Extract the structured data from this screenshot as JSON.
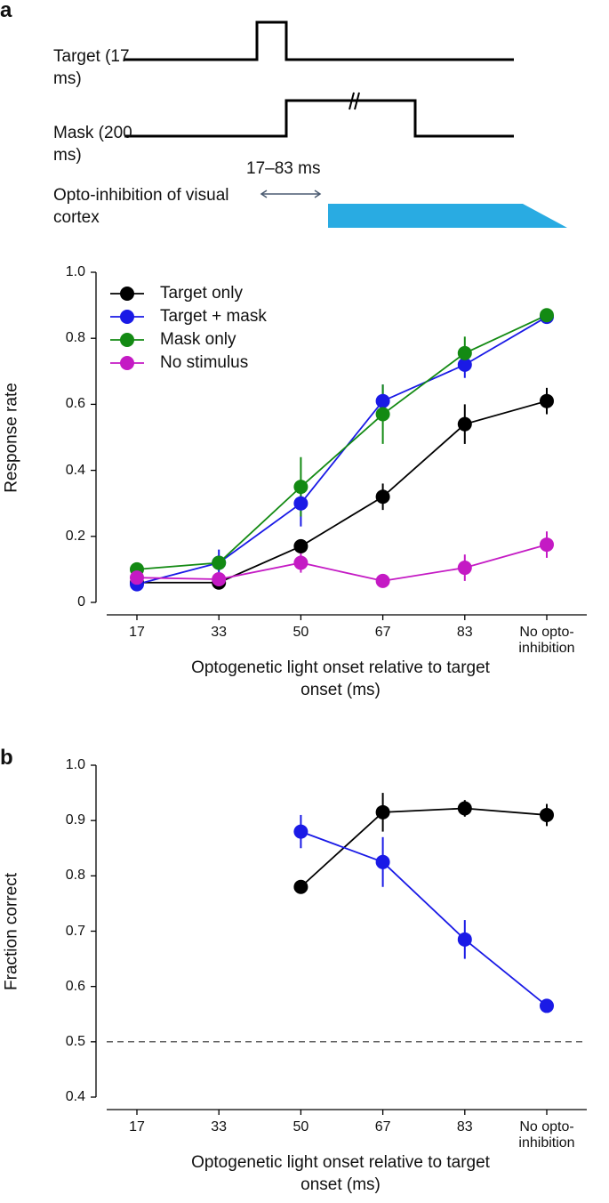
{
  "schematic": {
    "panel_label": "a",
    "target_label": "Target (17 ms)",
    "mask_label": "Mask (200 ms)",
    "interval_label": "17–83 ms",
    "opto_label": "Opto-inhibition of visual cortex"
  },
  "chart_data": [
    {
      "type": "line",
      "label": "",
      "ylabel": "Response rate",
      "xlabel": "Optogenetic light onset relative to target onset (ms)",
      "categories": [
        "17",
        "33",
        "50",
        "67",
        "83",
        "No opto-inhibition"
      ],
      "ylim": [
        0,
        1
      ],
      "yticks": [
        0,
        0.2,
        0.4,
        0.6,
        0.8,
        {
          "value": 1,
          "label": "1.0"
        }
      ],
      "legend": "upper left",
      "series": [
        {
          "name": "Target only",
          "color": "#000000",
          "values": [
            0.06,
            0.06,
            0.17,
            0.32,
            0.54,
            0.61
          ],
          "errors": [
            0.01,
            0.01,
            0.02,
            0.04,
            0.06,
            0.04
          ]
        },
        {
          "name": "Target + mask",
          "color": "#1a1ae6",
          "values": [
            0.055,
            0.12,
            0.3,
            0.61,
            0.72,
            0.865
          ],
          "errors": [
            0.01,
            0.04,
            0.07,
            0.05,
            0.04,
            0.02
          ]
        },
        {
          "name": "Mask only",
          "color": "#138a13",
          "values": [
            0.1,
            0.12,
            0.35,
            0.57,
            0.755,
            0.87
          ],
          "errors": [
            0.02,
            0.02,
            0.09,
            0.09,
            0.05,
            0.01
          ]
        },
        {
          "name": "No stimulus",
          "color": "#c41ac4",
          "values": [
            0.075,
            0.07,
            0.12,
            0.065,
            0.105,
            0.175
          ],
          "errors": [
            0.01,
            0.01,
            0.03,
            0.01,
            0.04,
            0.04
          ]
        }
      ]
    },
    {
      "type": "line",
      "label": "b",
      "ylabel": "Fraction correct",
      "xlabel": "Optogenetic light onset relative to target onset (ms)",
      "categories": [
        "17",
        "33",
        "50",
        "67",
        "83",
        "No opto-inhibition"
      ],
      "ylim": [
        0.4,
        1
      ],
      "yticks": [
        0.4,
        0.5,
        0.6,
        0.7,
        0.8,
        0.9,
        {
          "value": 1,
          "label": "1.0"
        }
      ],
      "hline": 0.5,
      "series": [
        {
          "color": "#000000",
          "values": [
            null,
            null,
            0.78,
            0.915,
            0.922,
            0.91
          ],
          "errors": [
            null,
            null,
            0.01,
            0.035,
            0.015,
            0.02
          ]
        },
        {
          "color": "#1a1ae6",
          "values": [
            null,
            null,
            0.88,
            0.825,
            0.685,
            0.565
          ],
          "errors": [
            null,
            null,
            0.03,
            0.045,
            0.035,
            0.01
          ]
        }
      ]
    }
  ]
}
